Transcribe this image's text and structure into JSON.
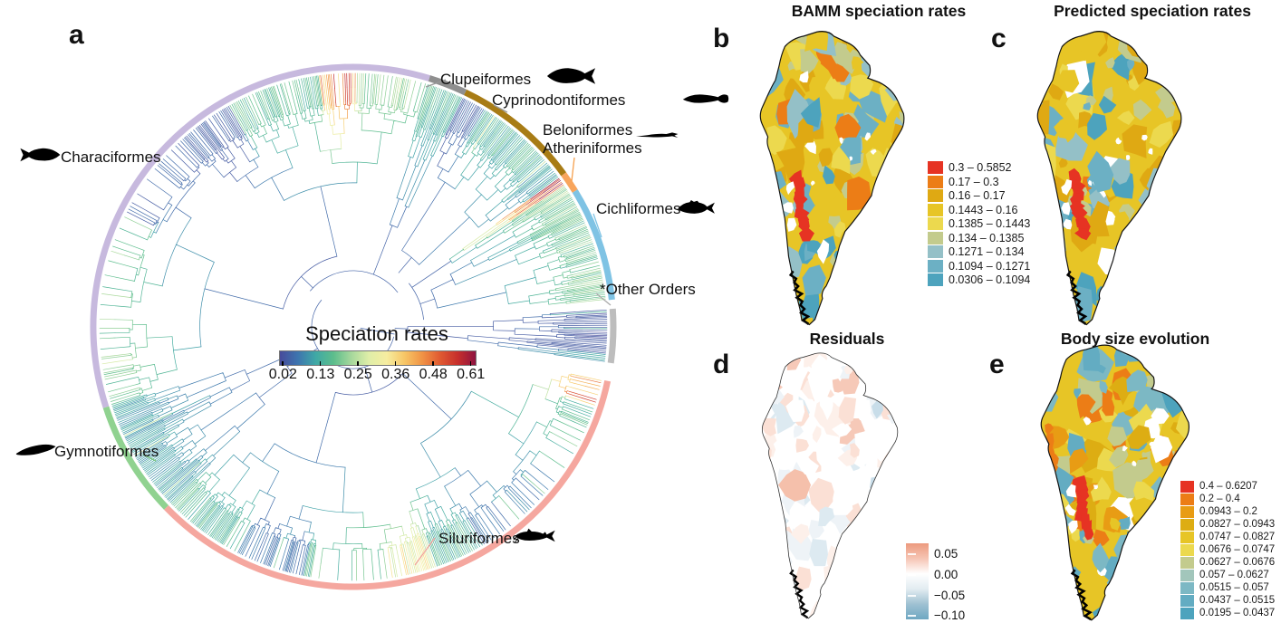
{
  "letters": {
    "a": "a",
    "b": "b",
    "c": "c",
    "d": "d",
    "e": "e"
  },
  "panel_a": {
    "legend": {
      "title": "Speciation rates",
      "ticks": [
        "0.02",
        "0.13",
        "0.25",
        "0.36",
        "0.48",
        "0.61"
      ]
    },
    "colorbar_stops": [
      "#474b9b",
      "#3e74ae",
      "#3fa8a6",
      "#5cbd8c",
      "#a5d79c",
      "#dfeea8",
      "#f6eda0",
      "#f7c666",
      "#f09345",
      "#e05a31",
      "#c62f2c",
      "#8e1340"
    ],
    "orders": [
      {
        "name": "Clupeiformes",
        "ring_color": "#8f8f8f",
        "icon": "shad-fish-icon"
      },
      {
        "name": "Cyprinodontiformes",
        "ring_color": "#a87c15",
        "icon": "killifish-icon"
      },
      {
        "name": "Beloniformes",
        "ring_color": "#f8a55c",
        "icon": "needlefish-icon"
      },
      {
        "name": "Atheriniformes",
        "ring_color": "#f8a55c",
        "icon": "needlefish-icon"
      },
      {
        "name": "Cichliformes",
        "ring_color": "#7fc3e4",
        "icon": "cichlid-fish-icon"
      },
      {
        "name": "*Other Orders",
        "ring_color": "#bdbdbd",
        "icon": ""
      },
      {
        "name": "Siluriformes",
        "ring_color": "#f5a79f",
        "icon": "catfish-icon"
      },
      {
        "name": "Gymnotiformes",
        "ring_color": "#90d290",
        "icon": "knifefish-icon"
      },
      {
        "name": "Characiformes",
        "ring_color": "#c7b9de",
        "icon": "characin-fish-icon"
      }
    ]
  },
  "panel_b": {
    "title": "BAMM speciation rates",
    "legend_classes": [
      {
        "range": "0.3 – 0.5852",
        "color": "#e63323"
      },
      {
        "range": "0.17 – 0.3",
        "color": "#ec7d16"
      },
      {
        "range": "0.16 – 0.17",
        "color": "#dfa913"
      },
      {
        "range": "0.1443 – 0.16",
        "color": "#e7c526"
      },
      {
        "range": "0.1385 – 0.1443",
        "color": "#ecd94e"
      },
      {
        "range": "0.134 – 0.1385",
        "color": "#c3cb8d"
      },
      {
        "range": "0.1271 – 0.134",
        "color": "#94c0c7"
      },
      {
        "range": "0.1094 – 0.1271",
        "color": "#6cb0c4"
      },
      {
        "range": "0.0306 – 0.1094",
        "color": "#4da3bd"
      }
    ]
  },
  "panel_c": {
    "title": "Predicted speciation rates"
  },
  "panel_d": {
    "title": "Residuals",
    "legend_ticks": [
      "0.05",
      "0.00",
      "−0.05",
      "−0.10"
    ],
    "gradient": [
      "#ec9a7e",
      "#f6c5b4",
      "#ffffff",
      "#e2ecf1",
      "#9fc1d2",
      "#6ea7c2"
    ]
  },
  "panel_e": {
    "title": "Body size evolution",
    "legend_classes": [
      {
        "range": "0.4 – 0.6207",
        "color": "#e63323"
      },
      {
        "range": "0.2 – 0.4",
        "color": "#ec7d16"
      },
      {
        "range": "0.0943 – 0.2",
        "color": "#e89c14"
      },
      {
        "range": "0.0827 – 0.0943",
        "color": "#ddad13"
      },
      {
        "range": "0.0747 – 0.0827",
        "color": "#e7c526"
      },
      {
        "range": "0.0676 – 0.0747",
        "color": "#ecd94e"
      },
      {
        "range": "0.0627 – 0.0676",
        "color": "#c3cb8d"
      },
      {
        "range": "0.057 – 0.0627",
        "color": "#a2c6bb"
      },
      {
        "range": "0.0515 – 0.057",
        "color": "#7cb8c4"
      },
      {
        "range": "0.0437 – 0.0515",
        "color": "#63acc2"
      },
      {
        "range": "0.0195 – 0.0437",
        "color": "#4da3bd"
      }
    ]
  },
  "chart_data": [
    {
      "id": "a",
      "type": "circular-phylogenetic-tree",
      "title": "Speciation rates",
      "colorbar": {
        "label": "Speciation rates",
        "ticks": [
          0.02,
          0.13,
          0.25,
          0.36,
          0.48,
          0.61
        ],
        "range": [
          0.02,
          0.61
        ]
      },
      "tip_groups": [
        "Clupeiformes",
        "Cyprinodontiformes",
        "Beloniformes",
        "Atheriniformes",
        "Cichliformes",
        "*Other Orders",
        "Siluriformes",
        "Gymnotiformes",
        "Characiformes"
      ]
    },
    {
      "id": "b",
      "type": "heatmap",
      "subtype": "choropleth-map",
      "region": "South America",
      "title": "BAMM speciation rates",
      "class_breaks": [
        0.0306,
        0.1094,
        0.1271,
        0.134,
        0.1385,
        0.1443,
        0.16,
        0.17,
        0.3,
        0.5852
      ],
      "legend_position": "right"
    },
    {
      "id": "c",
      "type": "heatmap",
      "subtype": "choropleth-map",
      "region": "South America",
      "title": "Predicted speciation rates",
      "class_breaks": [
        0.0306,
        0.1094,
        0.1271,
        0.134,
        0.1385,
        0.1443,
        0.16,
        0.17,
        0.3,
        0.5852
      ],
      "legend_position": "shared-with-b"
    },
    {
      "id": "d",
      "type": "heatmap",
      "subtype": "choropleth-map",
      "region": "South America",
      "title": "Residuals",
      "colorbar_ticks": [
        0.05,
        0.0,
        -0.05,
        -0.1
      ],
      "diverging": true,
      "legend_position": "right"
    },
    {
      "id": "e",
      "type": "heatmap",
      "subtype": "choropleth-map",
      "region": "South America",
      "title": "Body size evolution",
      "class_breaks": [
        0.0195,
        0.0437,
        0.0515,
        0.057,
        0.0627,
        0.0676,
        0.0747,
        0.0827,
        0.0943,
        0.2,
        0.4,
        0.6207
      ],
      "legend_position": "right"
    }
  ]
}
